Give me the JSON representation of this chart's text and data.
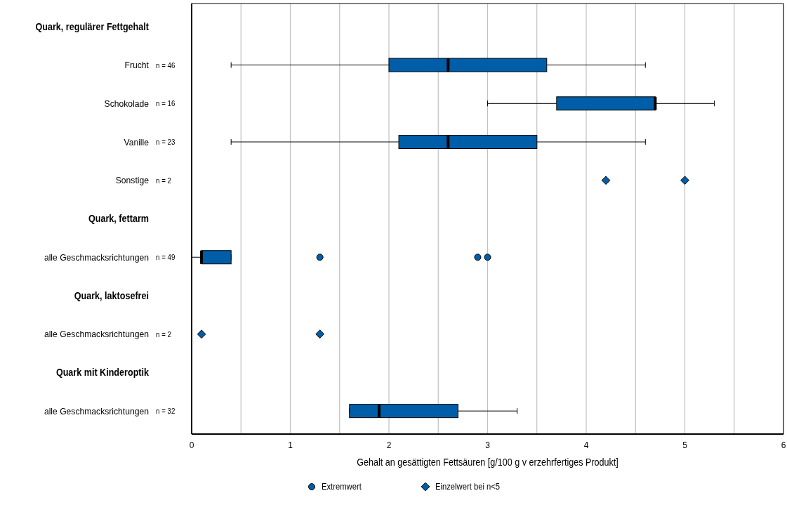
{
  "chart_data": {
    "type": "box",
    "orientation": "horizontal",
    "categories": [
      "Quark, regulärer Fettgehalt",
      "Frucht",
      "Schokolade",
      "Vanille",
      "Sonstige",
      "Quark, fettarm",
      "alle Geschmacksrichtungen",
      "Quark, laktosefrei",
      "alle Geschmacksrichtungen",
      "Quark mit Kinderoptik",
      "alle Geschmacksrichtungen"
    ],
    "y2_categories": [
      null,
      "n = 46",
      "n = 16",
      "n = 23",
      "n = 2",
      null,
      "n = 49",
      null,
      "n = 2",
      null,
      "n = 32"
    ],
    "xlabel": "Gehalt an gesättigten Fettsäuren [g/100 g v erzehrfertiges Produkt]",
    "xlim": [
      0,
      6
    ],
    "xticks": [
      0,
      {
        "value": 0.5,
        "label": null
      },
      1,
      {
        "value": 1.5,
        "label": null
      },
      2,
      {
        "value": 2.5,
        "label": null
      },
      3,
      {
        "value": 3.5,
        "label": null
      },
      4,
      {
        "value": 4.5,
        "label": null
      },
      5,
      {
        "value": 5.5,
        "label": null
      },
      6
    ],
    "grid": "x",
    "legend": "bottom",
    "series": [
      {
        "type": "box",
        "color": "#005ea8",
        "boxes": [
          null,
          {
            "low": 0.4,
            "q1": 2.0,
            "median": 2.6,
            "q3": 3.6,
            "high": 4.6
          },
          {
            "low": 3.0,
            "q1": 3.7,
            "median": 4.7,
            "q3": 4.7,
            "high": 5.3
          },
          {
            "low": 0.4,
            "q1": 2.1,
            "median": 2.6,
            "q3": 3.5,
            "high": 4.6
          },
          null,
          null,
          {
            "low": 0.0,
            "q1": 0.1,
            "median": 0.1,
            "q3": 0.4,
            "high": 0.4
          },
          null,
          null,
          null,
          {
            "low": 1.6,
            "q1": 1.6,
            "median": 1.9,
            "q3": 2.7,
            "high": 3.3
          }
        ]
      },
      {
        "type": "scatter",
        "name": "Extremwert",
        "marker": "circle",
        "color": "#005ea8",
        "values": [
          null,
          null,
          null,
          null,
          null,
          null,
          1.3,
          null,
          null,
          null,
          null
        ]
      },
      {
        "type": "scatter",
        "marker": "circle",
        "color": "#005ea8",
        "values": [
          null,
          null,
          null,
          null,
          null,
          null,
          2.9,
          null,
          null,
          null,
          null
        ]
      },
      {
        "type": "scatter",
        "marker": "circle",
        "color": "#005ea8",
        "values": [
          null,
          null,
          null,
          null,
          null,
          null,
          3.0,
          null,
          null,
          null,
          null
        ]
      },
      {
        "type": "scatter",
        "name": "Einzelwert bei n<5",
        "marker": "diamond",
        "color": "#005ea8",
        "values": [
          null,
          null,
          null,
          null,
          4.2,
          null,
          null,
          null,
          0.1,
          null,
          null
        ]
      },
      {
        "type": "scatter",
        "marker": "diamond",
        "color": "#005ea8",
        "values": [
          null,
          null,
          null,
          null,
          5.0,
          null,
          null,
          null,
          1.3,
          null,
          null
        ]
      }
    ]
  }
}
